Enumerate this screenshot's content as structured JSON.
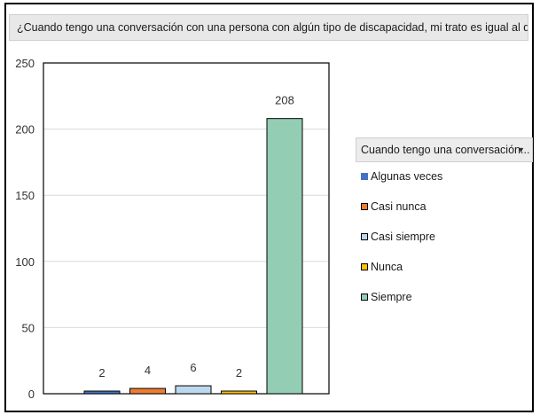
{
  "chart_data": {
    "type": "bar",
    "title": "¿Cuando tengo una conversación con una persona con algún tipo de discapacidad, mi trato es igual al que tengo...",
    "categories": [
      "Algunas veces",
      "Casi nunca",
      "Casi siempre",
      "Nunca",
      "Siempre"
    ],
    "values": [
      2,
      4,
      6,
      2,
      208
    ],
    "ylim": [
      0,
      250
    ],
    "yticks": [
      0,
      50,
      100,
      150,
      200,
      250
    ],
    "grid": true,
    "legend_placement": "right",
    "legend_header": "Cuando tengo una conversación...",
    "colors": [
      "#4472C4",
      "#ED7D31",
      "#BDD7EE",
      "#FFC000",
      "#93CDB4"
    ]
  }
}
